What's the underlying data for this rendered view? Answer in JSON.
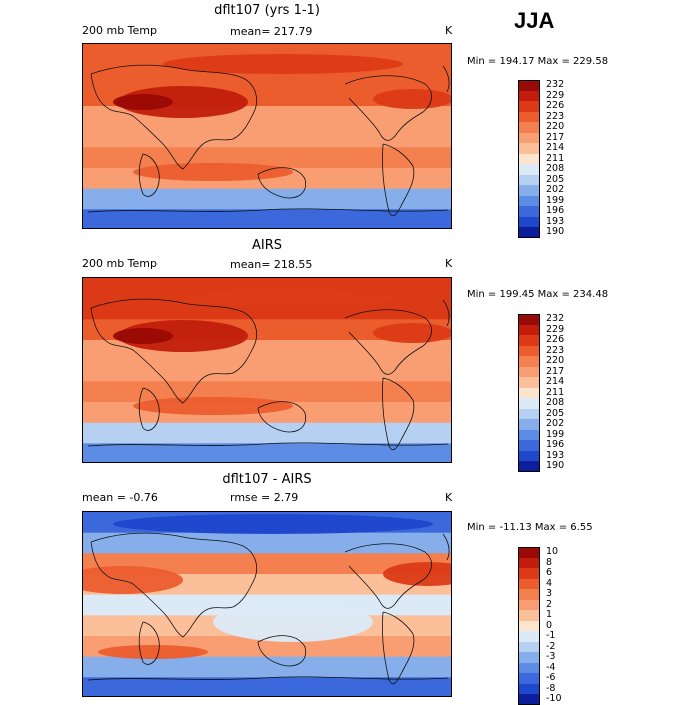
{
  "season": "JJA",
  "panels": [
    {
      "title": "dflt107 (yrs 1-1)",
      "left_label": "200 mb Temp",
      "center_label": "mean= 217.79",
      "right_label": "K",
      "minmax": "Min = 194.17 Max = 229.58"
    },
    {
      "title": "AIRS",
      "left_label": "200 mb Temp",
      "center_label": "mean= 218.55",
      "right_label": "K",
      "minmax": "Min = 199.45 Max = 234.48"
    },
    {
      "title": "dflt107 - AIRS",
      "left_label": "mean =  -0.76",
      "center_label": "rmse =   2.79",
      "right_label": "K",
      "minmax": "Min = -11.13 Max =   6.55"
    }
  ],
  "chart_data": [
    {
      "type": "heatmap",
      "title": "dflt107 (yrs 1-1)",
      "variable": "200 mb Temp",
      "units": "K",
      "mean": 217.79,
      "min": 194.17,
      "max": 229.58,
      "colorbar_levels": [
        "232",
        "229",
        "226",
        "223",
        "220",
        "217",
        "214",
        "211",
        "208",
        "205",
        "202",
        "199",
        "196",
        "193",
        "190"
      ],
      "colorbar_colors": [
        "#9a0a06",
        "#c21d0c",
        "#dc3a16",
        "#ec5d2e",
        "#f47f4f",
        "#f89e72",
        "#fbbf9a",
        "#fde4cc",
        "#dceaf8",
        "#b6d0f2",
        "#86aeea",
        "#5d8ce4",
        "#3b69dc",
        "#1f47cc",
        "#0c1e9c"
      ],
      "lat_profile": [
        {
          "lat": 80,
          "value": 224
        },
        {
          "lat": 60,
          "value": 225
        },
        {
          "lat": 40,
          "value": 224
        },
        {
          "lat": 20,
          "value": 218
        },
        {
          "lat": 0,
          "value": 217
        },
        {
          "lat": -20,
          "value": 220
        },
        {
          "lat": -40,
          "value": 218
        },
        {
          "lat": -60,
          "value": 202
        },
        {
          "lat": -80,
          "value": 196
        }
      ]
    },
    {
      "type": "heatmap",
      "title": "AIRS",
      "variable": "200 mb Temp",
      "units": "K",
      "mean": 218.55,
      "min": 199.45,
      "max": 234.48,
      "colorbar_levels": [
        "232",
        "229",
        "226",
        "223",
        "220",
        "217",
        "214",
        "211",
        "208",
        "205",
        "202",
        "199",
        "196",
        "193",
        "190"
      ],
      "colorbar_colors": [
        "#9a0a06",
        "#c21d0c",
        "#dc3a16",
        "#ec5d2e",
        "#f47f4f",
        "#f89e72",
        "#fbbf9a",
        "#fde4cc",
        "#dceaf8",
        "#b6d0f2",
        "#86aeea",
        "#5d8ce4",
        "#3b69dc",
        "#1f47cc",
        "#0c1e9c"
      ],
      "lat_profile": [
        {
          "lat": 80,
          "value": 228
        },
        {
          "lat": 60,
          "value": 226
        },
        {
          "lat": 40,
          "value": 224
        },
        {
          "lat": 20,
          "value": 219
        },
        {
          "lat": 0,
          "value": 218
        },
        {
          "lat": -20,
          "value": 220
        },
        {
          "lat": -40,
          "value": 218
        },
        {
          "lat": -60,
          "value": 205
        },
        {
          "lat": -80,
          "value": 200
        }
      ]
    },
    {
      "type": "heatmap",
      "title": "dflt107 - AIRS",
      "units": "K",
      "mean": -0.76,
      "rmse": 2.79,
      "min": -11.13,
      "max": 6.55,
      "colorbar_levels": [
        "10",
        "8",
        "6",
        "4",
        "3",
        "2",
        "1",
        "0",
        "-1",
        "-2",
        "-3",
        "-4",
        "-6",
        "-8",
        "-10"
      ],
      "colorbar_colors": [
        "#9a0a06",
        "#c21d0c",
        "#dc3a16",
        "#ec5d2e",
        "#f47f4f",
        "#f89e72",
        "#fbbf9a",
        "#fde4cc",
        "#dceaf8",
        "#b6d0f2",
        "#86aeea",
        "#5d8ce4",
        "#3b69dc",
        "#1f47cc",
        "#0c1e9c"
      ],
      "lat_profile": [
        {
          "lat": 80,
          "value": -6
        },
        {
          "lat": 60,
          "value": -3
        },
        {
          "lat": 40,
          "value": 3
        },
        {
          "lat": 20,
          "value": 1
        },
        {
          "lat": 0,
          "value": -1
        },
        {
          "lat": -20,
          "value": 1
        },
        {
          "lat": -40,
          "value": 2
        },
        {
          "lat": -60,
          "value": -3
        },
        {
          "lat": -80,
          "value": -5
        }
      ]
    }
  ]
}
